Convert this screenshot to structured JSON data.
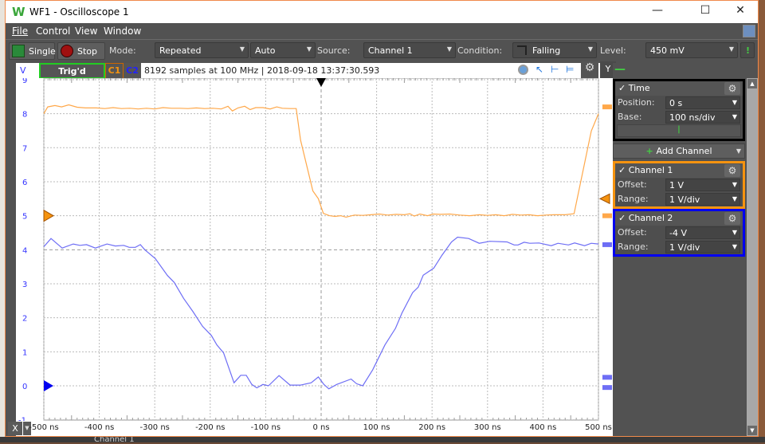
{
  "window": {
    "title": "WF1 - Oscilloscope 1",
    "logo": "W",
    "minimize": "—",
    "maximize": "☐",
    "close": "✕"
  },
  "menu": [
    "File",
    "Control",
    "View",
    "Window"
  ],
  "toolbar": {
    "single": "Single",
    "stop": "Stop",
    "mode_label": "Mode:",
    "mode": "Repeated",
    "auto": "Auto",
    "source_label": "Source:",
    "source": "Channel 1",
    "condition_label": "Condition:",
    "condition": "Falling",
    "level_label": "Level:",
    "level": "450 mV"
  },
  "plot_header": {
    "y_unit": "V",
    "status": "Trig'd",
    "c1": "C1",
    "c2": "C2",
    "info": "8192 samples at 100 MHz | 2018-09-18 13:37:30.593",
    "y_button": "Y"
  },
  "panel": {
    "time": {
      "title": "Time",
      "position_label": "Position:",
      "position": "0 s",
      "base_label": "Base:",
      "base": "100 ns/div"
    },
    "add_channel": "Add Channel",
    "channel1": {
      "title": "Channel 1",
      "offset_label": "Offset:",
      "offset": "1 V",
      "range_label": "Range:",
      "range": "1 V/div",
      "color": "#f5930f"
    },
    "channel2": {
      "title": "Channel 2",
      "offset_label": "Offset:",
      "offset": "-4 V",
      "range_label": "Range:",
      "range": "1 V/div",
      "color": "#0000f0"
    }
  },
  "x_button": "X",
  "background_text": "Channel 1",
  "chart_data": {
    "type": "line",
    "xlim": [
      -500,
      500
    ],
    "ylim": [
      -1,
      9.3
    ],
    "xticks": [
      "-500 ns",
      "-400 ns",
      "-300 ns",
      "-200 ns",
      "-100 ns",
      "0 ns",
      "100 ns",
      "200 ns",
      "300 ns",
      "400 ns",
      "500 ns"
    ],
    "yticks": [
      "-1",
      "0",
      "1",
      "2",
      "3",
      "4",
      "5",
      "6",
      "7",
      "8",
      "9"
    ],
    "grid": true,
    "series": [
      {
        "name": "C1",
        "color": "#ffa84a",
        "points": [
          [
            -500,
            8.0
          ],
          [
            -493,
            8.2
          ],
          [
            -480,
            8.24
          ],
          [
            -468,
            8.2
          ],
          [
            -455,
            8.26
          ],
          [
            -440,
            8.19
          ],
          [
            -425,
            8.17
          ],
          [
            -405,
            8.17
          ],
          [
            -390,
            8.15
          ],
          [
            -375,
            8.18
          ],
          [
            -360,
            8.15
          ],
          [
            -345,
            8.16
          ],
          [
            -330,
            8.14
          ],
          [
            -315,
            8.16
          ],
          [
            -300,
            8.14
          ],
          [
            -285,
            8.18
          ],
          [
            -270,
            8.16
          ],
          [
            -255,
            8.16
          ],
          [
            -240,
            8.15
          ],
          [
            -225,
            8.17
          ],
          [
            -210,
            8.15
          ],
          [
            -195,
            8.16
          ],
          [
            -180,
            8.14
          ],
          [
            -168,
            8.22
          ],
          [
            -160,
            8.08
          ],
          [
            -150,
            8.17
          ],
          [
            -138,
            8.22
          ],
          [
            -128,
            8.12
          ],
          [
            -118,
            8.18
          ],
          [
            -105,
            8.18
          ],
          [
            -92,
            8.14
          ],
          [
            -80,
            8.2
          ],
          [
            -70,
            8.16
          ],
          [
            -55,
            8.15
          ],
          [
            -45,
            8.15
          ],
          [
            -37,
            7.22
          ],
          [
            -15,
            5.73
          ],
          [
            -5,
            5.5
          ],
          [
            4,
            5.07
          ],
          [
            15,
            5.0
          ],
          [
            25,
            4.98
          ],
          [
            35,
            5.0
          ],
          [
            45,
            4.96
          ],
          [
            60,
            5.02
          ],
          [
            75,
            5.01
          ],
          [
            90,
            5.03
          ],
          [
            105,
            5.05
          ],
          [
            120,
            5.02
          ],
          [
            135,
            5.04
          ],
          [
            150,
            5.03
          ],
          [
            160,
            5.06
          ],
          [
            168,
            4.99
          ],
          [
            178,
            5.05
          ],
          [
            192,
            5.0
          ],
          [
            202,
            5.05
          ],
          [
            215,
            5.04
          ],
          [
            232,
            5.05
          ],
          [
            250,
            5.02
          ],
          [
            268,
            5.0
          ],
          [
            285,
            5.03
          ],
          [
            300,
            5.01
          ],
          [
            315,
            5.03
          ],
          [
            330,
            5.0
          ],
          [
            345,
            5.04
          ],
          [
            360,
            5.02
          ],
          [
            375,
            5.03
          ],
          [
            390,
            5.0
          ],
          [
            405,
            5.02
          ],
          [
            420,
            5.03
          ],
          [
            440,
            5.03
          ],
          [
            456,
            5.06
          ],
          [
            487,
            7.49
          ],
          [
            500,
            8.0
          ]
        ]
      },
      {
        "name": "C2",
        "color": "#6e6ef5",
        "points": [
          [
            -500,
            4.09
          ],
          [
            -487,
            4.33
          ],
          [
            -467,
            4.05
          ],
          [
            -447,
            4.17
          ],
          [
            -435,
            4.13
          ],
          [
            -423,
            4.15
          ],
          [
            -407,
            4.05
          ],
          [
            -386,
            4.17
          ],
          [
            -371,
            4.11
          ],
          [
            -356,
            4.13
          ],
          [
            -346,
            4.07
          ],
          [
            -335,
            4.07
          ],
          [
            -326,
            4.15
          ],
          [
            -318,
            4.0
          ],
          [
            -299,
            3.74
          ],
          [
            -277,
            3.24
          ],
          [
            -265,
            3.04
          ],
          [
            -248,
            2.57
          ],
          [
            -231,
            2.18
          ],
          [
            -214,
            1.75
          ],
          [
            -198,
            1.48
          ],
          [
            -188,
            1.2
          ],
          [
            -176,
            0.97
          ],
          [
            -157,
            0.09
          ],
          [
            -145,
            0.31
          ],
          [
            -135,
            0.31
          ],
          [
            -125,
            0.04
          ],
          [
            -116,
            -0.06
          ],
          [
            -105,
            0.04
          ],
          [
            -95,
            0.0
          ],
          [
            -76,
            0.3
          ],
          [
            -56,
            0.02
          ],
          [
            -37,
            0.02
          ],
          [
            -18,
            0.09
          ],
          [
            -5,
            0.26
          ],
          [
            5,
            0.04
          ],
          [
            14,
            -0.09
          ],
          [
            28,
            0.04
          ],
          [
            54,
            0.2
          ],
          [
            64,
            0.06
          ],
          [
            75,
            0.0
          ],
          [
            93,
            0.47
          ],
          [
            115,
            1.2
          ],
          [
            134,
            1.69
          ],
          [
            146,
            2.15
          ],
          [
            165,
            2.74
          ],
          [
            175,
            2.9
          ],
          [
            184,
            3.25
          ],
          [
            203,
            3.46
          ],
          [
            218,
            3.84
          ],
          [
            235,
            4.23
          ],
          [
            246,
            4.37
          ],
          [
            266,
            4.33
          ],
          [
            285,
            4.19
          ],
          [
            304,
            4.25
          ],
          [
            335,
            4.23
          ],
          [
            348,
            4.14
          ],
          [
            355,
            4.14
          ],
          [
            366,
            4.22
          ],
          [
            376,
            4.19
          ],
          [
            393,
            4.2
          ],
          [
            415,
            4.12
          ],
          [
            427,
            4.19
          ],
          [
            446,
            4.14
          ],
          [
            457,
            4.2
          ],
          [
            475,
            4.12
          ],
          [
            487,
            4.19
          ],
          [
            500,
            4.17
          ]
        ]
      }
    ]
  }
}
